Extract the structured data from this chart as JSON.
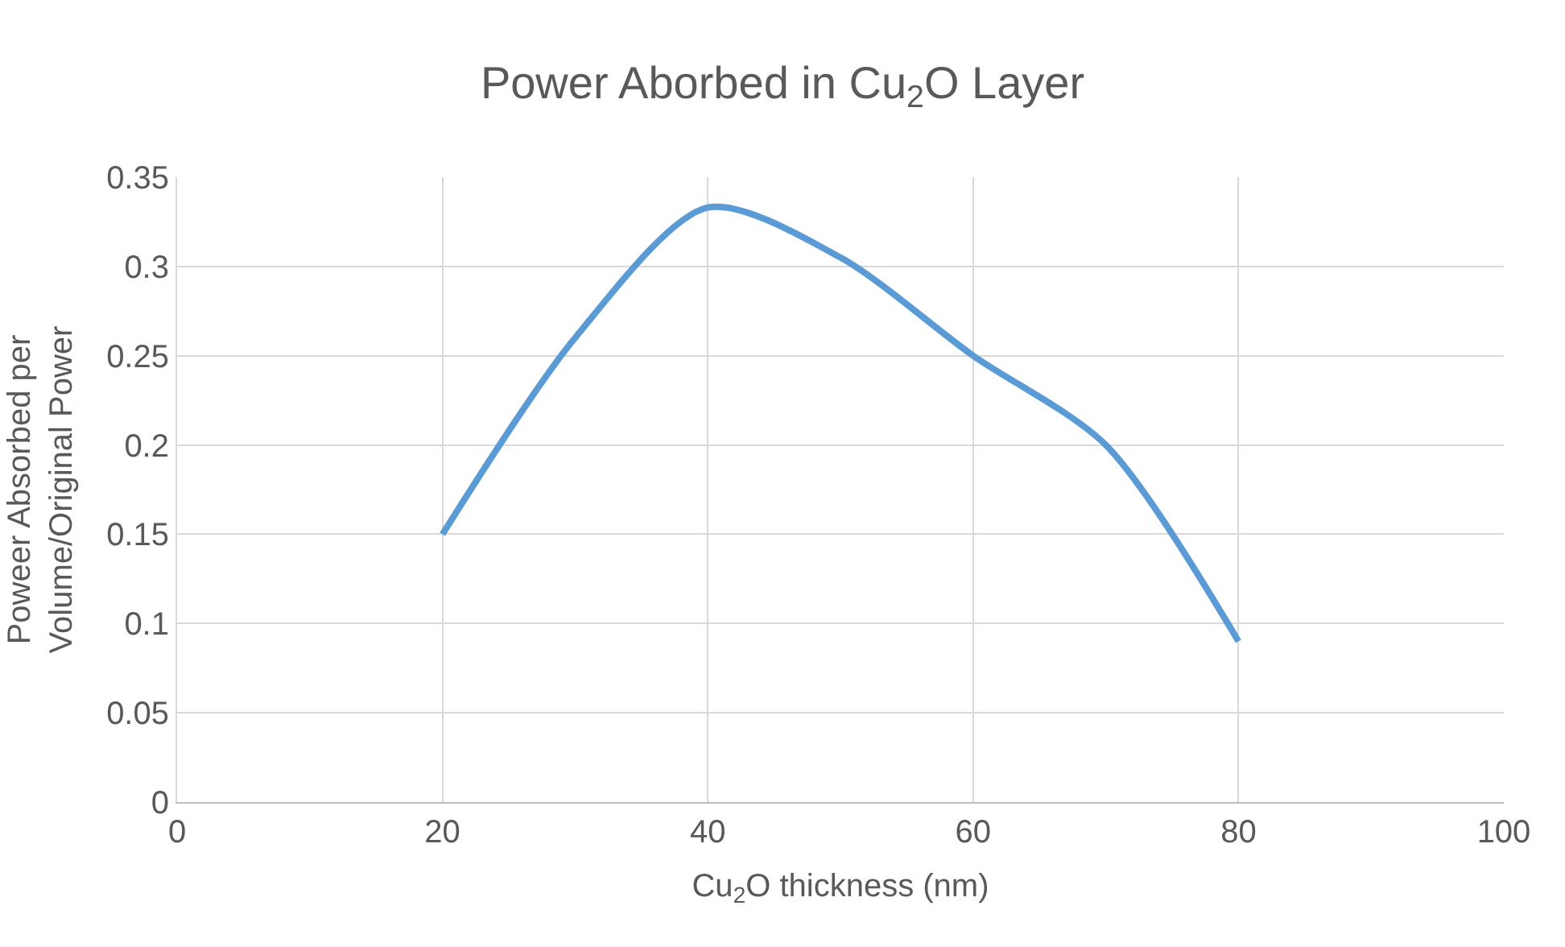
{
  "chart_data": {
    "type": "line",
    "title": "Power Aborbed in Cu$_{2}$O Layer",
    "xlabel": "Cu$_{2}$O thickness (nm)",
    "ylabel": "Poweer Absorbed per\nVolume/Original Power",
    "x": [
      20,
      30,
      40,
      50,
      60,
      70,
      80
    ],
    "series": [
      {
        "color": "#5b9bd5",
        "values": [
          0.15,
          0.26,
          0.333,
          0.305,
          0.25,
          0.2,
          0.09
        ]
      }
    ],
    "xlim": [
      0,
      100
    ],
    "xticks": [
      0,
      20,
      40,
      60,
      80,
      100
    ],
    "ylim": [
      0,
      0.35
    ],
    "yticks": [
      0,
      0.05,
      0.1,
      0.15,
      0.2,
      0.25,
      0.3,
      0.35
    ],
    "grid": true,
    "marker": "none",
    "line_style": "solid"
  }
}
